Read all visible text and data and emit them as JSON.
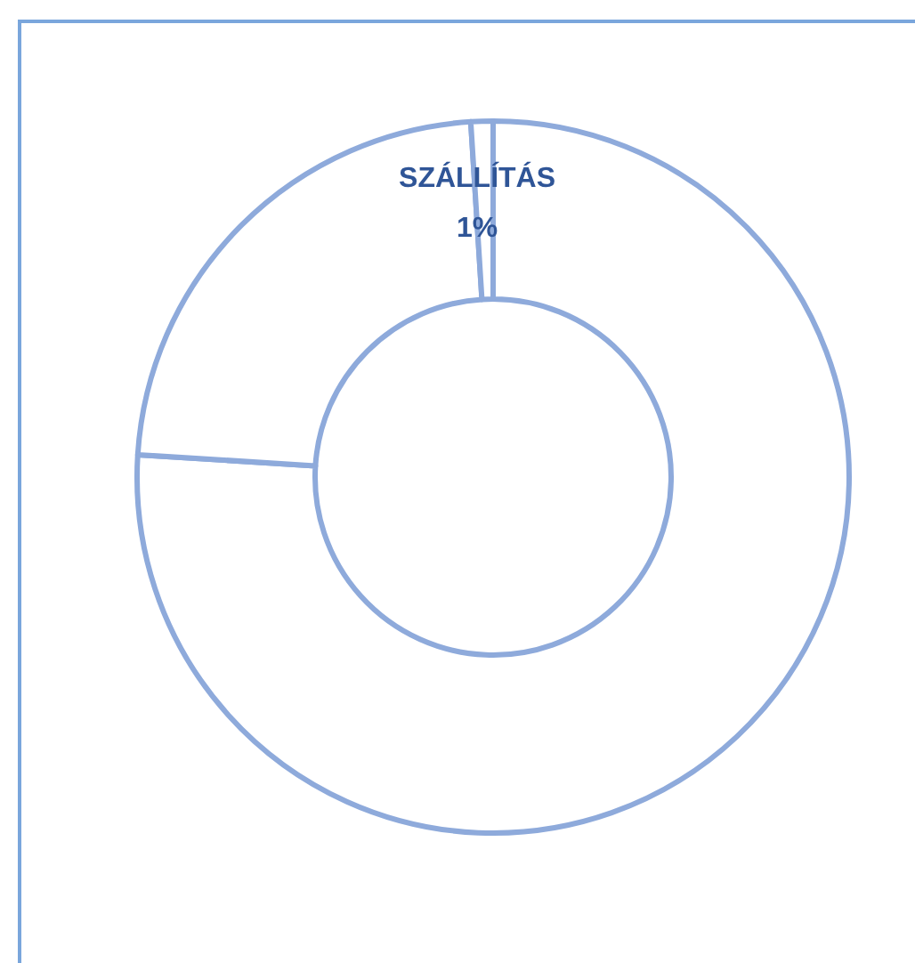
{
  "chart_data": {
    "type": "donut",
    "categories": [
      null,
      null,
      "SZÁLLÍTÁS"
    ],
    "values": [
      76,
      23,
      1
    ],
    "colors": [
      "#ffffff",
      "#ffffff",
      "#ffffff"
    ],
    "value_labels": [
      null,
      null,
      "1%"
    ]
  }
}
